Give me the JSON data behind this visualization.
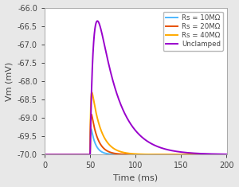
{
  "title": "",
  "xlabel": "Time (ms)",
  "ylabel": "Vm (mV)",
  "xlim": [
    0,
    200
  ],
  "ylim": [
    -70,
    -66
  ],
  "yticks": [
    -70,
    -69.5,
    -69,
    -68.5,
    -68,
    -67.5,
    -67,
    -66.5,
    -66
  ],
  "xticks": [
    0,
    50,
    100,
    150,
    200
  ],
  "background_color": "#e8e8e8",
  "axes_color": "#ffffff",
  "resting": -70.0,
  "stim_start": 50,
  "peak_unclamped": -66.35,
  "peak_rs10": -69.3,
  "peak_rs20": -68.9,
  "peak_rs40": -68.3,
  "rise_tau_unclamped": 4.5,
  "rise_tau_rs10": 0.4,
  "rise_tau_rs20": 0.5,
  "rise_tau_rs40": 0.7,
  "decay_tau_unclamped": 22,
  "decay_tau_rs10": 5,
  "decay_tau_rs20": 7,
  "decay_tau_rs40": 10,
  "colors": {
    "rs10": "#4db8ff",
    "rs20": "#e85000",
    "rs40": "#ffaa00",
    "unclamped": "#9900cc"
  },
  "legend_labels": [
    "Rs = 10MΩ",
    "Rs = 20MΩ",
    "Rs = 40MΩ",
    "Unclamped"
  ],
  "linewidth": 1.4
}
